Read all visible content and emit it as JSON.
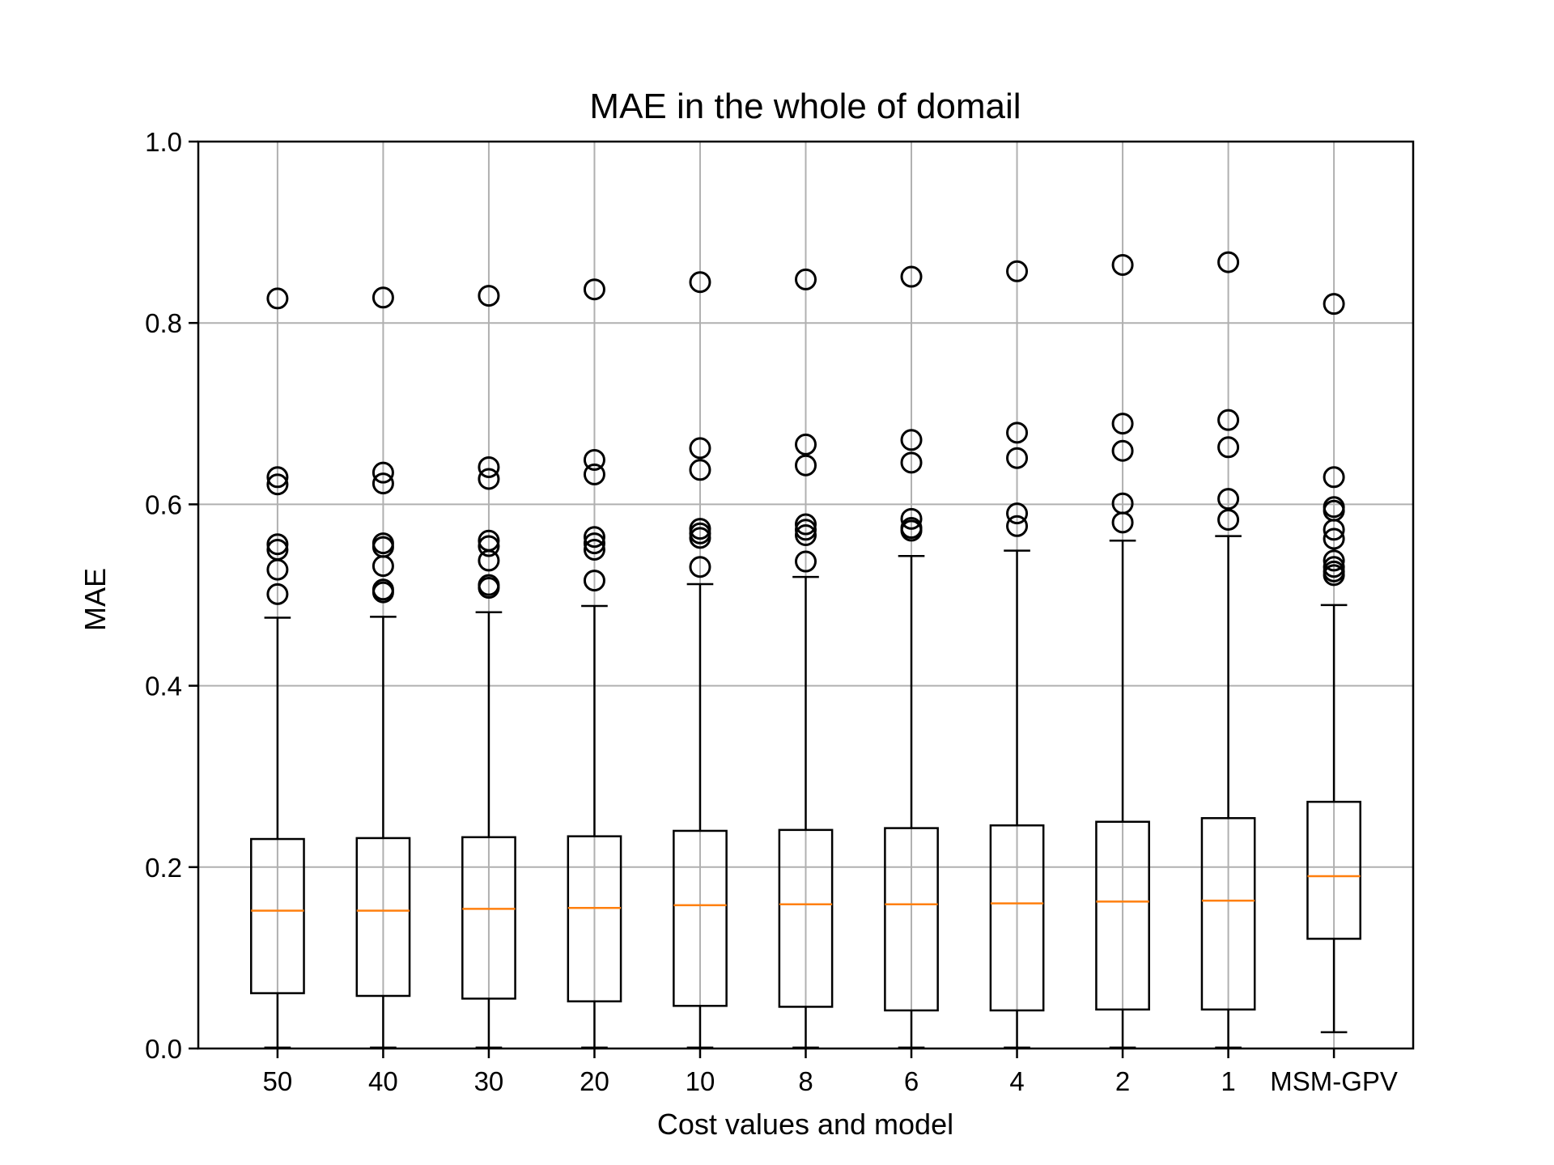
{
  "chart_data": {
    "type": "boxplot",
    "title": "MAE in the whole of domail",
    "xlabel": "Cost values and model",
    "ylabel": "MAE",
    "ylim": [
      0.0,
      1.0
    ],
    "yticks": [
      "0.0",
      "0.2",
      "0.4",
      "0.6",
      "0.8",
      "1.0"
    ],
    "ytick_values": [
      0.0,
      0.2,
      0.4,
      0.6,
      0.8,
      1.0
    ],
    "grid": true,
    "colors": {
      "box": "#000000",
      "median": "#ff7f0e",
      "grid": "#b0b0b0"
    },
    "categories": [
      "50",
      "40",
      "30",
      "20",
      "10",
      "8",
      "6",
      "4",
      "2",
      "1",
      "MSM-GPV"
    ],
    "boxes": [
      {
        "q1": 0.061,
        "median": 0.152,
        "q3": 0.231,
        "whisker_low": 0.001,
        "whisker_high": 0.475,
        "fliers": [
          0.827,
          0.63,
          0.622,
          0.556,
          0.55,
          0.528,
          0.501
        ]
      },
      {
        "q1": 0.058,
        "median": 0.152,
        "q3": 0.232,
        "whisker_low": 0.001,
        "whisker_high": 0.476,
        "fliers": [
          0.828,
          0.635,
          0.623,
          0.557,
          0.553,
          0.532,
          0.506,
          0.503
        ]
      },
      {
        "q1": 0.055,
        "median": 0.154,
        "q3": 0.233,
        "whisker_low": 0.001,
        "whisker_high": 0.481,
        "fliers": [
          0.83,
          0.641,
          0.628,
          0.56,
          0.554,
          0.538,
          0.511,
          0.508
        ]
      },
      {
        "q1": 0.052,
        "median": 0.155,
        "q3": 0.234,
        "whisker_low": 0.001,
        "whisker_high": 0.488,
        "fliers": [
          0.837,
          0.649,
          0.633,
          0.564,
          0.557,
          0.55,
          0.516
        ]
      },
      {
        "q1": 0.047,
        "median": 0.158,
        "q3": 0.24,
        "whisker_low": 0.001,
        "whisker_high": 0.512,
        "fliers": [
          0.845,
          0.662,
          0.638,
          0.573,
          0.568,
          0.563,
          0.531
        ]
      },
      {
        "q1": 0.046,
        "median": 0.159,
        "q3": 0.241,
        "whisker_low": 0.001,
        "whisker_high": 0.52,
        "fliers": [
          0.848,
          0.666,
          0.643,
          0.578,
          0.572,
          0.566,
          0.537
        ]
      },
      {
        "q1": 0.042,
        "median": 0.159,
        "q3": 0.243,
        "whisker_low": 0.001,
        "whisker_high": 0.543,
        "fliers": [
          0.851,
          0.671,
          0.646,
          0.584,
          0.574,
          0.571
        ]
      },
      {
        "q1": 0.042,
        "median": 0.16,
        "q3": 0.246,
        "whisker_low": 0.001,
        "whisker_high": 0.549,
        "fliers": [
          0.857,
          0.679,
          0.651,
          0.59,
          0.576
        ]
      },
      {
        "q1": 0.043,
        "median": 0.162,
        "q3": 0.25,
        "whisker_low": 0.001,
        "whisker_high": 0.56,
        "fliers": [
          0.864,
          0.689,
          0.659,
          0.601,
          0.58
        ]
      },
      {
        "q1": 0.043,
        "median": 0.163,
        "q3": 0.254,
        "whisker_low": 0.001,
        "whisker_high": 0.565,
        "fliers": [
          0.867,
          0.693,
          0.663,
          0.606,
          0.583
        ]
      },
      {
        "q1": 0.121,
        "median": 0.19,
        "q3": 0.272,
        "whisker_low": 0.018,
        "whisker_high": 0.489,
        "fliers": [
          0.821,
          0.63,
          0.597,
          0.593,
          0.572,
          0.562,
          0.538,
          0.531,
          0.526,
          0.522
        ]
      }
    ]
  }
}
